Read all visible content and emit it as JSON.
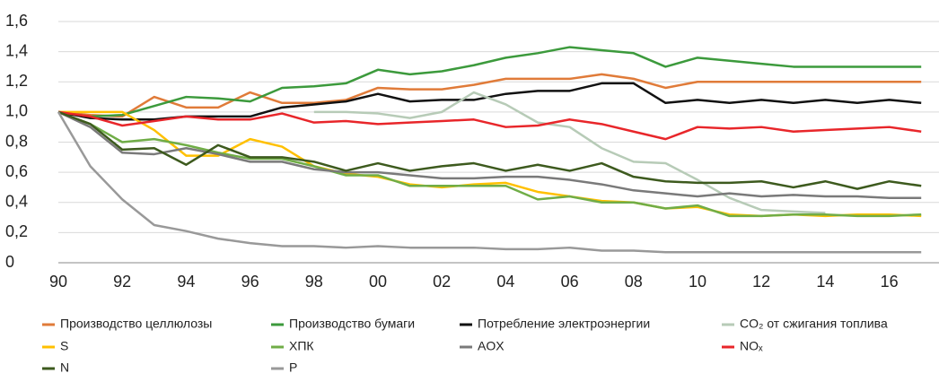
{
  "chart_data": {
    "type": "line",
    "categories": [
      "90",
      null,
      "92",
      null,
      "94",
      null,
      "96",
      null,
      "98",
      null,
      "00",
      null,
      "02",
      null,
      "04",
      null,
      "06",
      null,
      "08",
      null,
      "10",
      null,
      "12",
      null,
      "14",
      null,
      "16",
      null
    ],
    "ylim": [
      0,
      1.6
    ],
    "yticks": [
      0,
      {
        "value": 0.2,
        "label": "0,2"
      },
      {
        "value": 0.4,
        "label": "0,4"
      },
      {
        "value": 0.6,
        "label": "0,6"
      },
      {
        "value": 0.8,
        "label": "0,8"
      },
      {
        "value": 1.0,
        "label": "1,0"
      },
      {
        "value": 1.2,
        "label": "1,2"
      },
      {
        "value": 1.4,
        "label": "1,4"
      },
      {
        "value": 1.6,
        "label": "1,6"
      }
    ],
    "grid": true,
    "series": [
      {
        "name": "Производство целлюлозы",
        "color": "#e07b39",
        "values": [
          1.0,
          0.98,
          0.97,
          1.1,
          1.03,
          1.03,
          1.13,
          1.06,
          1.06,
          1.08,
          1.16,
          1.15,
          1.15,
          1.18,
          1.22,
          1.22,
          1.22,
          1.25,
          1.22,
          1.16,
          1.2,
          1.2,
          1.2,
          1.2,
          1.2,
          1.2,
          1.2,
          1.2
        ]
      },
      {
        "name": "Производство бумаги",
        "color": "#3c9a3c",
        "values": [
          1.0,
          0.97,
          0.98,
          1.04,
          1.1,
          1.09,
          1.07,
          1.16,
          1.17,
          1.19,
          1.28,
          1.25,
          1.27,
          1.31,
          1.36,
          1.39,
          1.43,
          1.41,
          1.39,
          1.3,
          1.36,
          1.34,
          1.32,
          1.3,
          1.3,
          1.3,
          1.3,
          1.3
        ]
      },
      {
        "name": "Потребление электроэнергии",
        "color": "#111111",
        "values": [
          1.0,
          0.96,
          0.95,
          0.95,
          0.97,
          0.97,
          0.97,
          1.03,
          1.05,
          1.07,
          1.12,
          1.07,
          1.08,
          1.08,
          1.12,
          1.14,
          1.14,
          1.19,
          1.19,
          1.06,
          1.08,
          1.06,
          1.08,
          1.06,
          1.08,
          1.06,
          1.08,
          1.06
        ]
      },
      {
        "name": "CO₂ от сжигания топлива",
        "color": "#b7cbb7",
        "values": [
          null,
          null,
          null,
          null,
          null,
          null,
          null,
          null,
          1.0,
          1.0,
          0.99,
          0.96,
          1.0,
          1.13,
          1.05,
          0.93,
          0.9,
          0.76,
          0.67,
          0.66,
          0.55,
          0.43,
          0.35,
          0.34,
          0.33,
          null,
          null,
          null
        ]
      },
      {
        "name": "S",
        "color": "#ffc000",
        "values": [
          1.0,
          1.0,
          1.0,
          0.88,
          0.71,
          0.71,
          0.82,
          0.77,
          0.64,
          0.59,
          0.57,
          0.52,
          0.5,
          0.52,
          0.53,
          0.47,
          0.44,
          0.41,
          0.4,
          0.36,
          0.37,
          0.32,
          0.31,
          0.32,
          0.31,
          0.32,
          0.32,
          0.31
        ]
      },
      {
        "name": "ХПК",
        "color": "#70ad47",
        "values": [
          1.0,
          0.92,
          0.8,
          0.82,
          0.78,
          0.73,
          0.69,
          0.69,
          0.64,
          0.58,
          0.58,
          0.51,
          0.51,
          0.51,
          0.51,
          0.42,
          0.44,
          0.4,
          0.4,
          0.36,
          0.38,
          0.31,
          0.31,
          0.32,
          0.32,
          0.31,
          0.31,
          0.32
        ]
      },
      {
        "name": "AOX",
        "color": "#7a7a7a",
        "values": [
          1.0,
          0.9,
          0.73,
          0.72,
          0.76,
          0.72,
          0.67,
          0.67,
          0.62,
          0.6,
          0.6,
          0.58,
          0.56,
          0.56,
          0.57,
          0.57,
          0.55,
          0.52,
          0.48,
          0.46,
          0.44,
          0.46,
          0.44,
          0.45,
          0.44,
          0.44,
          0.43,
          0.43
        ]
      },
      {
        "name": "NOₓ",
        "color": "#e8262a",
        "values": [
          1.0,
          0.97,
          0.91,
          0.94,
          0.97,
          0.95,
          0.95,
          0.99,
          0.93,
          0.94,
          0.92,
          0.93,
          0.94,
          0.95,
          0.9,
          0.91,
          0.95,
          0.92,
          0.87,
          0.82,
          0.9,
          0.89,
          0.9,
          0.87,
          0.88,
          0.89,
          0.9,
          0.87
        ]
      },
      {
        "name": "N",
        "color": "#3d5a1e",
        "values": [
          1.0,
          0.92,
          0.75,
          0.76,
          0.65,
          0.78,
          0.7,
          0.7,
          0.67,
          0.61,
          0.66,
          0.61,
          0.64,
          0.66,
          0.61,
          0.65,
          0.61,
          0.66,
          0.57,
          0.54,
          0.53,
          0.53,
          0.54,
          0.5,
          0.54,
          0.49,
          0.54,
          0.51
        ]
      },
      {
        "name": "P",
        "color": "#999999",
        "values": [
          1.0,
          0.64,
          0.42,
          0.25,
          0.21,
          0.16,
          0.13,
          0.11,
          0.11,
          0.1,
          0.11,
          0.1,
          0.1,
          0.1,
          0.09,
          0.09,
          0.1,
          0.08,
          0.08,
          0.07,
          0.07,
          0.07,
          0.07,
          0.07,
          0.07,
          0.07,
          0.07,
          0.07
        ]
      }
    ]
  }
}
